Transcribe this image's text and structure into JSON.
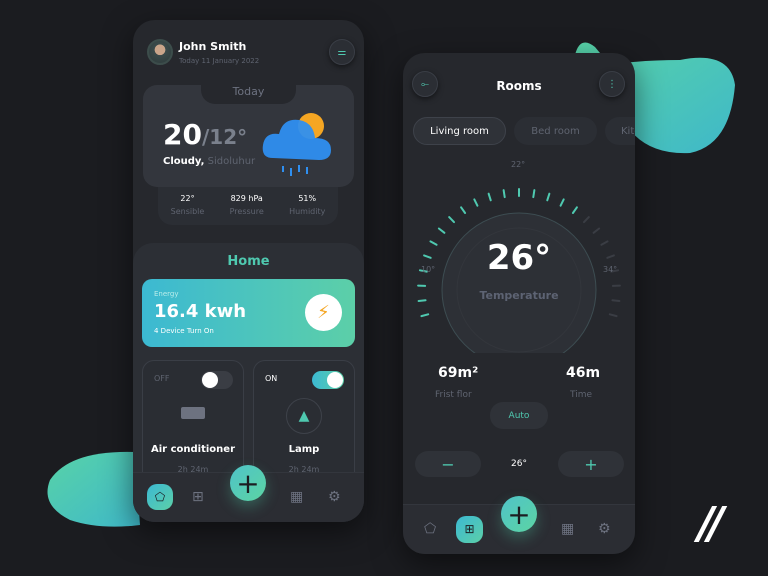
{
  "colors": {
    "accent": "#4fc9b0",
    "background": "#1b1c20",
    "panel": "#26282d",
    "sun": "#f5a623",
    "cloud": "#2f8ff0"
  },
  "home_screen": {
    "user": {
      "name": "John Smith",
      "date": "Today  11 January 2022"
    },
    "weather": {
      "tab": "Today",
      "temp_high": "20",
      "temp_low": "/12°",
      "condition": "Cloudy,",
      "location": "Sidoluhur",
      "stats": [
        {
          "value": "22°",
          "label": "Sensible"
        },
        {
          "value": "829 hPa",
          "label": "Pressure"
        },
        {
          "value": "51%",
          "label": "Humidity"
        }
      ]
    },
    "section_title": "Home",
    "energy": {
      "label": "Energy",
      "value": "16.4 kwh",
      "sub": "4 Device Turn On"
    },
    "devices": [
      {
        "state": "OFF",
        "name": "Air conditioner",
        "time": "2h 24m",
        "on": false
      },
      {
        "state": "ON",
        "name": "Lamp",
        "time": "2h 24m",
        "on": true
      }
    ],
    "nav": {
      "active": "home",
      "icons": [
        "home-icon",
        "grid-icon",
        "calendar-icon",
        "settings-icon"
      ]
    }
  },
  "rooms_screen": {
    "title": "Rooms",
    "tabs": [
      {
        "label": "Living room",
        "active": true
      },
      {
        "label": "Bed room",
        "active": false
      },
      {
        "label": "Kitc",
        "active": false
      }
    ],
    "dial": {
      "min_label": "10°",
      "mid_label": "22°",
      "max_label": "34°",
      "min": 10,
      "max": 34,
      "value": 26,
      "value_label": "26°",
      "caption": "Temperature"
    },
    "stats": [
      {
        "value": "69m²",
        "label": "Frist flor"
      },
      {
        "value": "46m",
        "label": "Time"
      }
    ],
    "mode": "Auto",
    "stepper": {
      "minus": "−",
      "value": "26°",
      "plus": "+"
    },
    "nav": {
      "active": "grid"
    }
  },
  "fab_label": "+",
  "logo": "//"
}
